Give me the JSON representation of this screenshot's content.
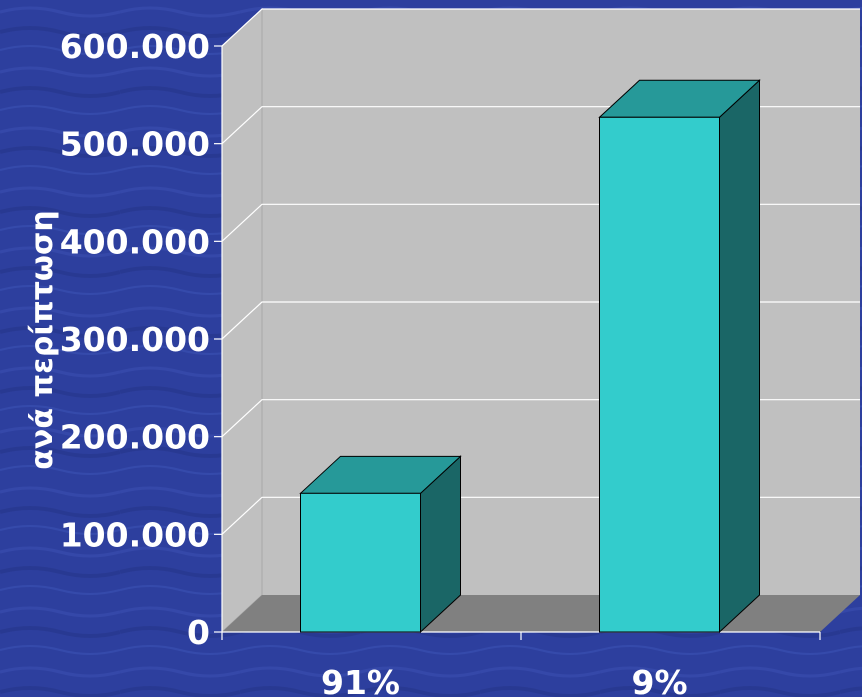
{
  "chart_data": {
    "type": "bar",
    "style": "3d-column",
    "categories": [
      "91%",
      "9%"
    ],
    "values": [
      142000,
      527000
    ],
    "title": "",
    "xlabel": "",
    "ylabel": "ανά περίπτωση",
    "ylim": [
      0,
      600000
    ],
    "yticks": [
      0,
      100000,
      200000,
      300000,
      400000,
      500000,
      600000
    ],
    "ytick_labels": [
      "0",
      "100.000",
      "200.000",
      "300.000",
      "400.000",
      "500.000",
      "600.000"
    ],
    "grid": true,
    "legend": "none",
    "colors": {
      "background": "#2d3f9e",
      "wall": "#c0c0c0",
      "floor": "#808080",
      "gridline": "#ffffff",
      "bar_front": "#33cccc",
      "bar_top": "#269999",
      "bar_side": "#1a6666",
      "text": "#ffffff"
    }
  }
}
